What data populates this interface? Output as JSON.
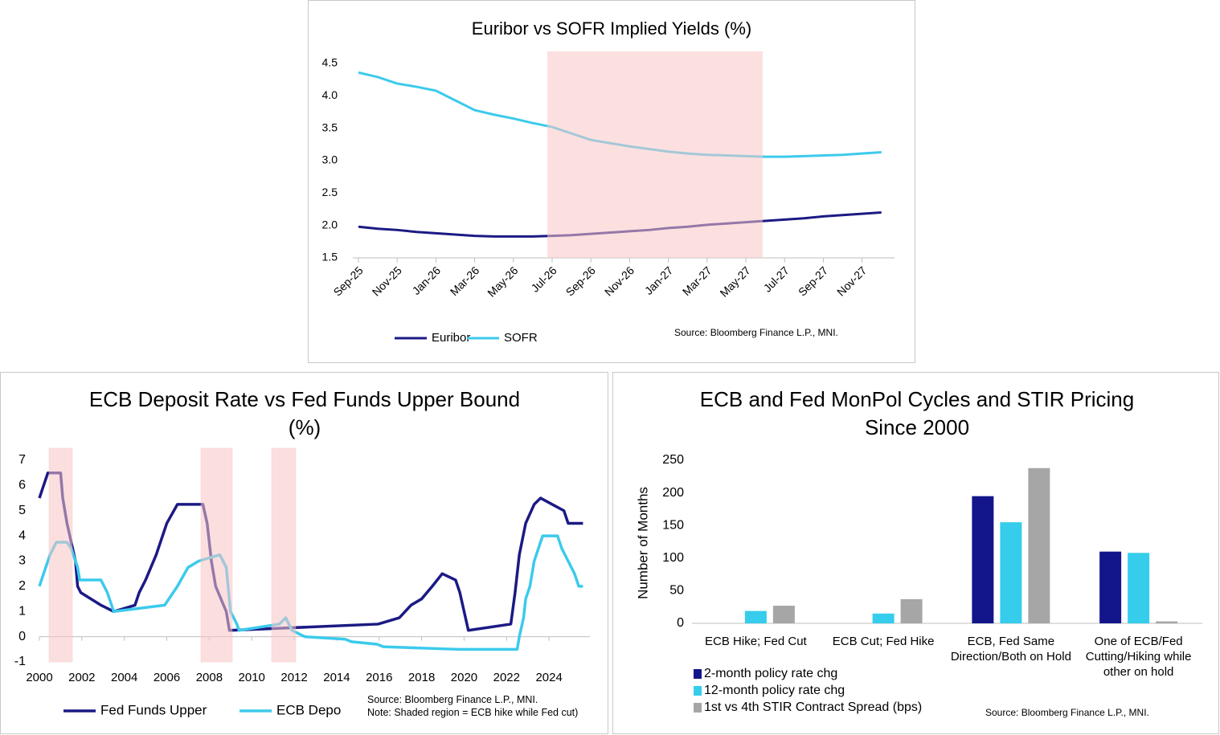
{
  "chart_data": [
    {
      "type": "line",
      "title": "Euribor vs SOFR Implied Yields (%)",
      "categories": [
        "Sep-25",
        null,
        "Nov-25",
        null,
        "Jan-26",
        null,
        "Mar-26",
        null,
        "May-26",
        null,
        "Jul-26",
        null,
        "Sep-26",
        null,
        "Nov-26",
        null,
        "Jan-27",
        null,
        "Mar-27",
        null,
        "May-27",
        null,
        "Jul-27",
        null,
        "Sep-27",
        null,
        "Nov-27",
        null
      ],
      "series": [
        {
          "name": "Euribor",
          "color": "#1b1a84",
          "values": [
            1.98,
            1.95,
            1.93,
            1.9,
            1.88,
            1.86,
            1.84,
            1.83,
            1.83,
            1.83,
            1.84,
            1.85,
            1.87,
            1.89,
            1.91,
            1.93,
            1.96,
            1.98,
            2.01,
            2.03,
            2.05,
            2.07,
            2.09,
            2.11,
            2.14,
            2.16,
            2.18,
            2.2
          ]
        },
        {
          "name": "SOFR",
          "color": "#3ccaec",
          "values": [
            4.36,
            4.29,
            4.19,
            4.14,
            4.08,
            3.93,
            3.78,
            3.71,
            3.65,
            3.58,
            3.52,
            3.42,
            3.32,
            3.27,
            3.22,
            3.18,
            3.14,
            3.11,
            3.09,
            3.08,
            3.07,
            3.06,
            3.06,
            3.07,
            3.08,
            3.09,
            3.11,
            3.13
          ]
        }
      ],
      "ylim": [
        1.5,
        4.5
      ],
      "yticks": [
        1.5,
        {
          "value": 2,
          "label": "2.0"
        },
        2.5,
        {
          "value": 3,
          "label": "3.0"
        },
        3.5,
        {
          "value": 4,
          "label": "4.0"
        },
        4.5
      ],
      "grid": false,
      "legend": "bottom",
      "source": "Source: Bloomberg Finance L.P., MNI."
    },
    {
      "type": "line",
      "title": "ECB Deposit Rate  vs Fed Funds Upper Bound (%)",
      "series": [
        {
          "name": "Fed Funds Upper",
          "color": "#1b1a84",
          "x": [
            2000.0,
            2000.1,
            2000.2,
            2000.4,
            2001.0,
            2001.1,
            2001.3,
            2001.5,
            2001.7,
            2001.8,
            2001.95,
            2002.9,
            2003.5,
            2004.5,
            2004.7,
            2005.0,
            2005.5,
            2006.0,
            2006.5,
            2007.7,
            2007.9,
            2008.1,
            2008.3,
            2008.8,
            2008.95,
            2015.95,
            2016.95,
            2017.5,
            2018.0,
            2018.5,
            2018.97,
            2019.6,
            2019.8,
            2020.2,
            2022.2,
            2022.4,
            2022.6,
            2022.9,
            2023.3,
            2023.6,
            2024.7,
            2024.9,
            2025.6
          ],
          "values": [
            5.5,
            5.75,
            6.0,
            6.5,
            6.5,
            5.5,
            4.5,
            3.75,
            3.0,
            2.0,
            1.75,
            1.25,
            1.0,
            1.25,
            1.75,
            2.25,
            3.25,
            4.5,
            5.25,
            5.25,
            4.5,
            3.0,
            2.0,
            1.0,
            0.25,
            0.5,
            0.75,
            1.25,
            1.5,
            2.0,
            2.5,
            2.25,
            1.75,
            0.25,
            0.5,
            1.75,
            3.25,
            4.5,
            5.25,
            5.5,
            5.0,
            4.5,
            4.5
          ]
        },
        {
          "name": "ECB Depo",
          "color": "#3ccaec",
          "x": [
            2000.0,
            2000.3,
            2000.5,
            2000.8,
            2001.3,
            2001.5,
            2001.8,
            2001.9,
            2002.9,
            2003.2,
            2003.5,
            2005.9,
            2006.5,
            2007.0,
            2007.5,
            2008.5,
            2008.8,
            2009.0,
            2009.3,
            2009.4,
            2011.3,
            2011.6,
            2011.9,
            2012.5,
            2014.4,
            2014.7,
            2015.9,
            2016.2,
            2019.7,
            2022.5,
            2022.6,
            2022.8,
            2022.9,
            2023.1,
            2023.3,
            2023.6,
            2023.7,
            2024.4,
            2024.6,
            2024.9,
            2025.2,
            2025.4,
            2025.6
          ],
          "values": [
            2.0,
            2.75,
            3.25,
            3.75,
            3.75,
            3.5,
            2.75,
            2.25,
            2.25,
            1.75,
            1.0,
            1.25,
            2.0,
            2.75,
            3.0,
            3.25,
            2.75,
            1.0,
            0.5,
            0.25,
            0.5,
            0.75,
            0.25,
            0.0,
            -0.1,
            -0.2,
            -0.3,
            -0.4,
            -0.5,
            -0.5,
            0.0,
            0.75,
            1.5,
            2.0,
            3.0,
            3.75,
            4.0,
            4.0,
            3.5,
            3.0,
            2.5,
            2.0,
            2.0
          ]
        }
      ],
      "xlim": [
        2000,
        2026
      ],
      "xticks": [
        2000,
        2002,
        2004,
        2006,
        2008,
        2010,
        2012,
        2014,
        2016,
        2018,
        2020,
        2022,
        2024
      ],
      "ylim": [
        -1,
        7
      ],
      "yticks": [
        -1,
        0,
        1,
        2,
        3,
        4,
        5,
        6,
        7
      ],
      "grid": false,
      "legend": "bottom",
      "source": "Source: Bloomberg Finance L.P., MNI.",
      "note": "Note: Shaded region = ECB hike while Fed cut)"
    },
    {
      "type": "bar",
      "title": "ECB and Fed MonPol Cycles and STIR Pricing Since 2000",
      "y_label": "Number of Months",
      "categories": [
        "ECB Hike; Fed Cut",
        "ECB Cut; Fed Hike",
        "ECB, Fed Same Direction/Both on Hold",
        "One of ECB/Fed Cutting/Hiking while other on hold"
      ],
      "series": [
        {
          "name": "2-month policy rate chg",
          "color": "#13168a",
          "values": [
            0,
            0,
            195,
            110
          ]
        },
        {
          "name": "12-month policy rate chg",
          "color": "#35cdeb",
          "values": [
            19,
            15,
            155,
            108
          ]
        },
        {
          "name": "1st vs 4th STIR Contract Spread (bps)",
          "color": "#a6a6a6",
          "values": [
            27,
            37,
            238,
            3
          ]
        }
      ],
      "ylim": [
        0,
        250
      ],
      "yticks": [
        0,
        50,
        100,
        150,
        200,
        250
      ],
      "grid": false,
      "legend": "bottom-left",
      "source": "Source: Bloomberg Finance L.P., MNI."
    }
  ]
}
